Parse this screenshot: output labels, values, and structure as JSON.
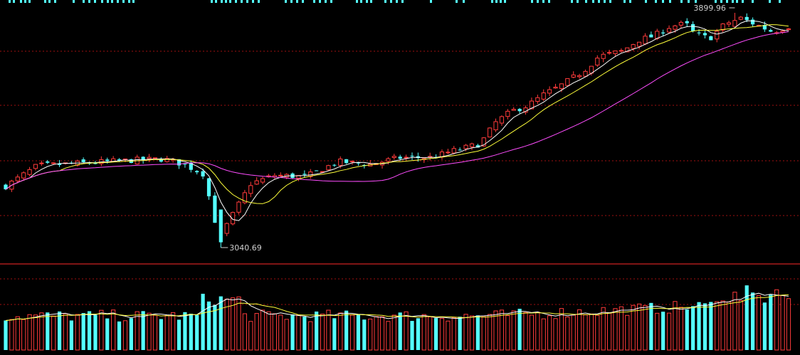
{
  "chart_data": [
    {
      "type": "candlestick",
      "annotations": {
        "high_label": "3899.96",
        "low_label": "3040.69"
      },
      "colors": {
        "background": "#000000",
        "up": "#ff3b3b",
        "down": "#54ffff",
        "ma_short": "#ffffff",
        "ma_mid": "#ffff3a",
        "ma_long": "#ff4dff",
        "grid": "#a01010",
        "separator": "#ff2a2a"
      },
      "grid": true,
      "bars": 132,
      "price_range": [
        3040.69,
        3899.96
      ],
      "ma_series": [
        "ma_short",
        "ma_mid",
        "ma_long"
      ]
    },
    {
      "type": "bar",
      "panel": "volume",
      "ma_series": [
        "vol_ma_short",
        "vol_ma_long"
      ],
      "colors": {
        "up": "#ff3b3b",
        "down": "#54ffff",
        "vol_ma_short": "#ffffff",
        "vol_ma_long": "#ffff3a"
      }
    }
  ]
}
